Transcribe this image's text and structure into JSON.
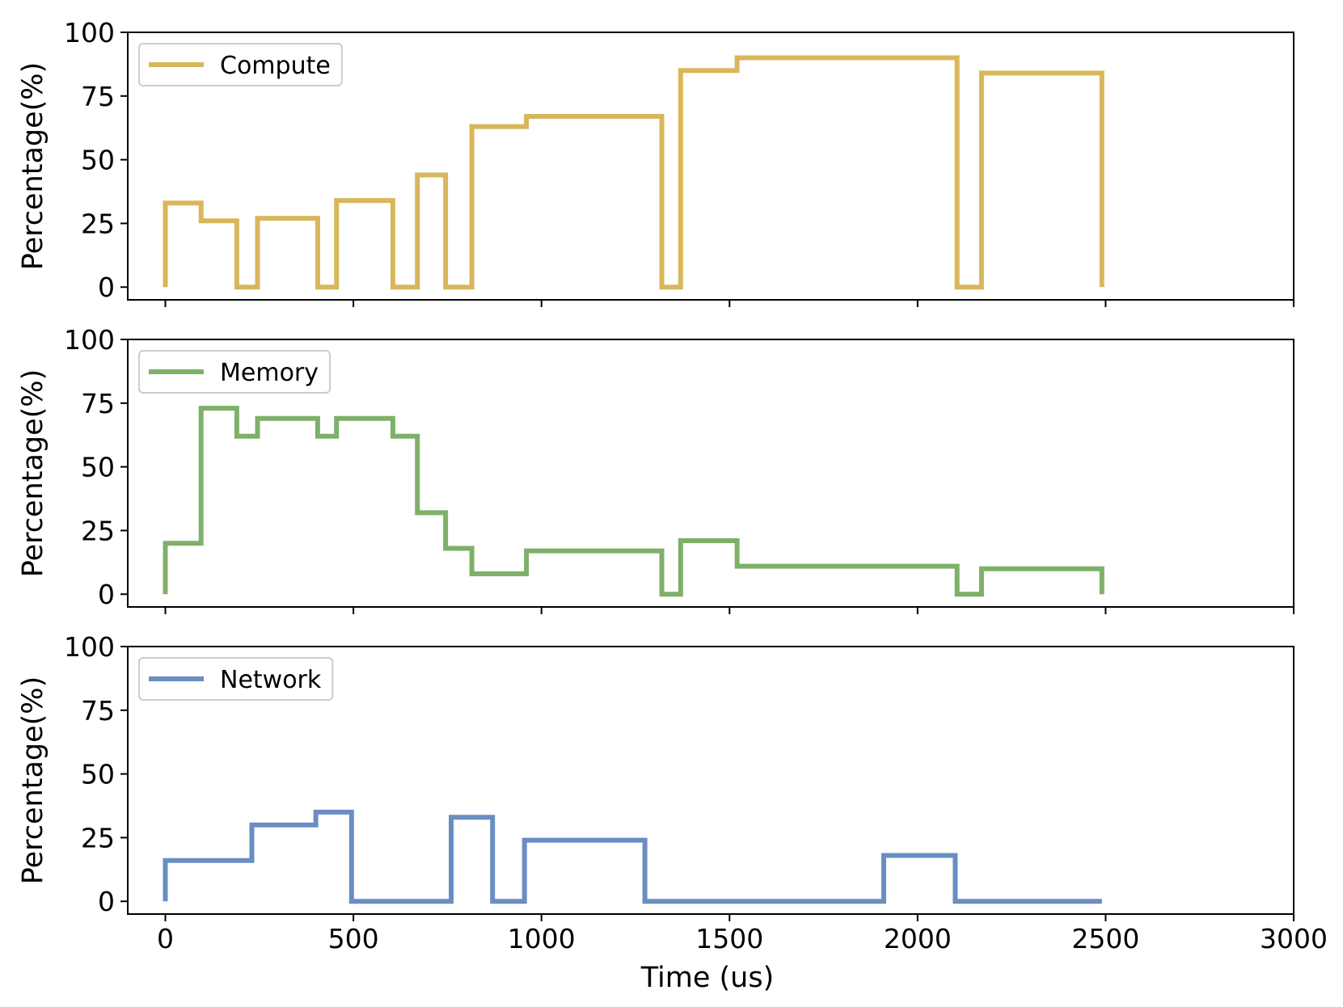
{
  "chart_data": [
    {
      "type": "line",
      "step": true,
      "series_name": "Compute",
      "color": "#D8B75B",
      "xlim": [
        -100,
        3000
      ],
      "ylim": [
        -5,
        100
      ],
      "yticks": [
        0,
        25,
        50,
        75,
        100
      ],
      "xticks": [
        0,
        500,
        1000,
        1500,
        2000,
        2500,
        3000
      ],
      "ylabel": "Percentage(%)",
      "legend_position": "upper-left",
      "points": [
        [
          0,
          0
        ],
        [
          0,
          33
        ],
        [
          95,
          33
        ],
        [
          95,
          26
        ],
        [
          190,
          26
        ],
        [
          190,
          0
        ],
        [
          245,
          0
        ],
        [
          245,
          27
        ],
        [
          405,
          27
        ],
        [
          405,
          0
        ],
        [
          455,
          0
        ],
        [
          455,
          34
        ],
        [
          605,
          34
        ],
        [
          605,
          0
        ],
        [
          670,
          0
        ],
        [
          670,
          44
        ],
        [
          745,
          44
        ],
        [
          745,
          0
        ],
        [
          815,
          0
        ],
        [
          815,
          63
        ],
        [
          960,
          63
        ],
        [
          960,
          67
        ],
        [
          1320,
          67
        ],
        [
          1320,
          0
        ],
        [
          1370,
          0
        ],
        [
          1370,
          85
        ],
        [
          1520,
          85
        ],
        [
          1520,
          90
        ],
        [
          2105,
          90
        ],
        [
          2105,
          0
        ],
        [
          2170,
          0
        ],
        [
          2170,
          84
        ],
        [
          2490,
          84
        ],
        [
          2490,
          0
        ]
      ]
    },
    {
      "type": "line",
      "step": true,
      "series_name": "Memory",
      "color": "#7FB069",
      "xlim": [
        -100,
        3000
      ],
      "ylim": [
        -5,
        100
      ],
      "yticks": [
        0,
        25,
        50,
        75,
        100
      ],
      "xticks": [
        0,
        500,
        1000,
        1500,
        2000,
        2500,
        3000
      ],
      "ylabel": "Percentage(%)",
      "legend_position": "upper-left",
      "points": [
        [
          0,
          0
        ],
        [
          0,
          20
        ],
        [
          95,
          20
        ],
        [
          95,
          73
        ],
        [
          190,
          73
        ],
        [
          190,
          62
        ],
        [
          245,
          62
        ],
        [
          245,
          69
        ],
        [
          405,
          69
        ],
        [
          405,
          62
        ],
        [
          455,
          62
        ],
        [
          455,
          69
        ],
        [
          605,
          69
        ],
        [
          605,
          62
        ],
        [
          670,
          62
        ],
        [
          670,
          32
        ],
        [
          745,
          32
        ],
        [
          745,
          18
        ],
        [
          815,
          18
        ],
        [
          815,
          8
        ],
        [
          960,
          8
        ],
        [
          960,
          17
        ],
        [
          1320,
          17
        ],
        [
          1320,
          0
        ],
        [
          1370,
          0
        ],
        [
          1370,
          21
        ],
        [
          1520,
          21
        ],
        [
          1520,
          11
        ],
        [
          2105,
          11
        ],
        [
          2105,
          0
        ],
        [
          2170,
          0
        ],
        [
          2170,
          10
        ],
        [
          2490,
          10
        ],
        [
          2490,
          0
        ]
      ]
    },
    {
      "type": "line",
      "step": true,
      "series_name": "Network",
      "color": "#6A8EC1",
      "xlim": [
        -100,
        3000
      ],
      "ylim": [
        -5,
        100
      ],
      "yticks": [
        0,
        25,
        50,
        75,
        100
      ],
      "xticks": [
        0,
        500,
        1000,
        1500,
        2000,
        2500,
        3000
      ],
      "ylabel": "Percentage(%)",
      "xlabel": "Time (us)",
      "legend_position": "upper-left",
      "points": [
        [
          0,
          0
        ],
        [
          0,
          16
        ],
        [
          230,
          16
        ],
        [
          230,
          30
        ],
        [
          400,
          30
        ],
        [
          400,
          35
        ],
        [
          495,
          35
        ],
        [
          495,
          0
        ],
        [
          760,
          0
        ],
        [
          760,
          33
        ],
        [
          870,
          33
        ],
        [
          870,
          0
        ],
        [
          955,
          0
        ],
        [
          955,
          24
        ],
        [
          1275,
          24
        ],
        [
          1275,
          0
        ],
        [
          1910,
          0
        ],
        [
          1910,
          18
        ],
        [
          2100,
          18
        ],
        [
          2100,
          0
        ],
        [
          2490,
          0
        ]
      ]
    }
  ]
}
